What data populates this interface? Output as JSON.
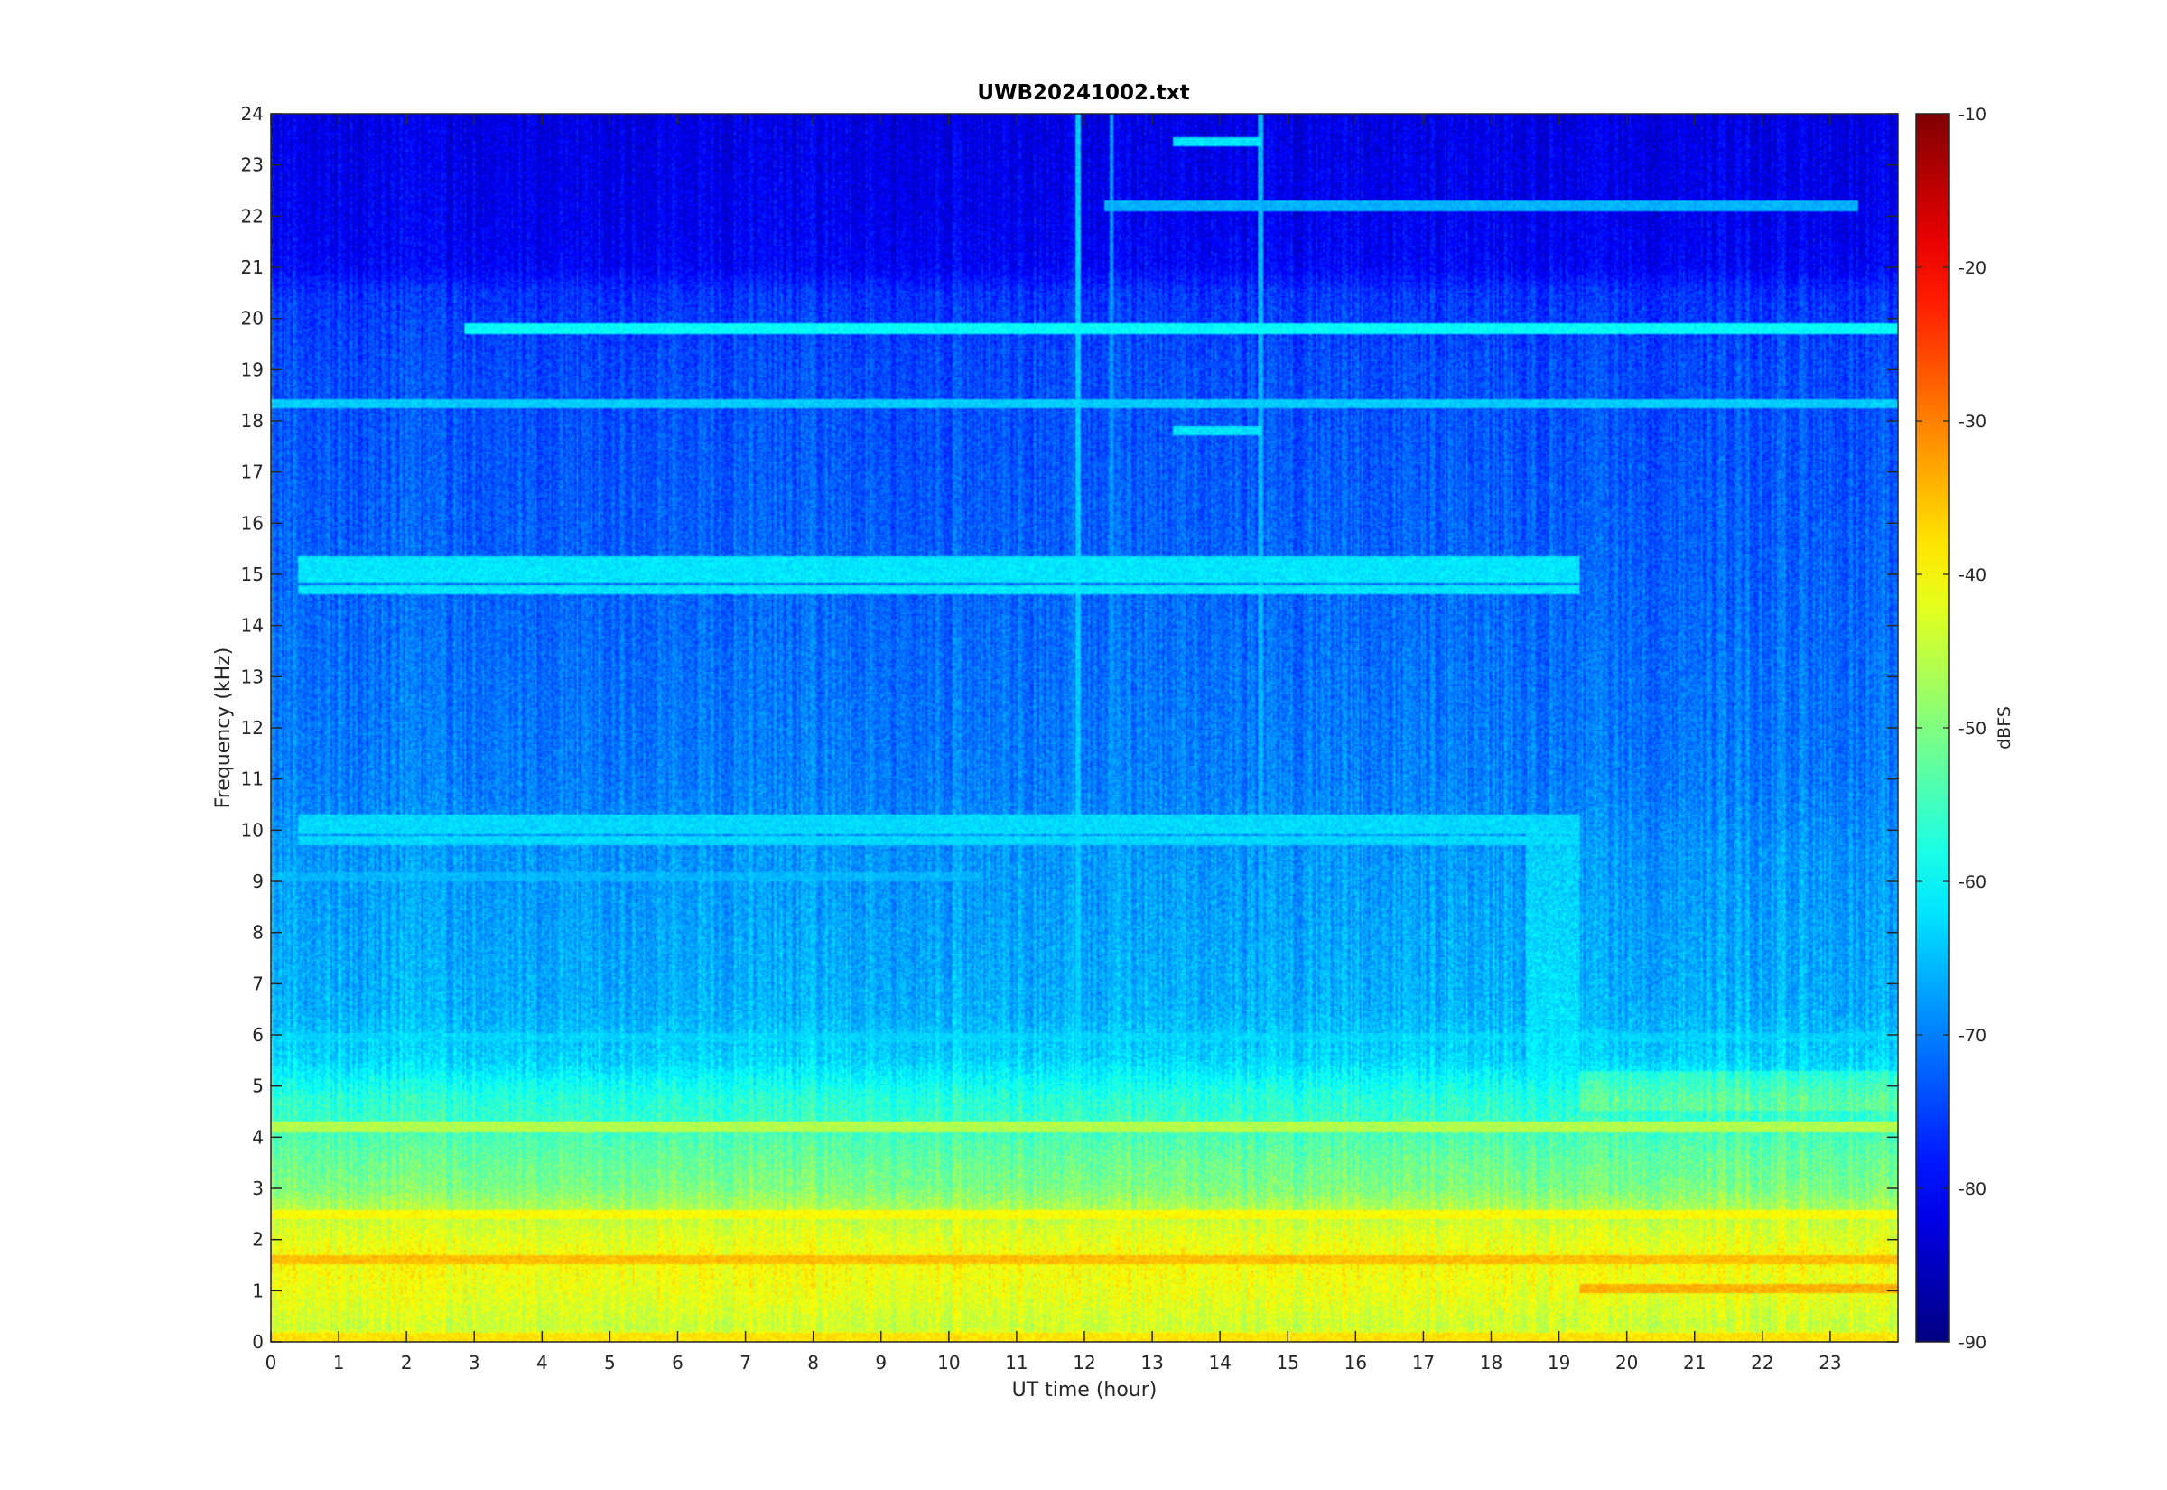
{
  "chart_data": {
    "type": "heatmap",
    "title": "UWB20241002.txt",
    "xlabel": "UT time (hour)",
    "ylabel": "Frequency (kHz)",
    "xlim": [
      0,
      24
    ],
    "ylim": [
      0,
      24
    ],
    "x_ticks": [
      0,
      1,
      2,
      3,
      4,
      5,
      6,
      7,
      8,
      9,
      10,
      11,
      12,
      13,
      14,
      15,
      16,
      17,
      18,
      19,
      20,
      21,
      22,
      23
    ],
    "y_ticks": [
      0,
      1,
      2,
      3,
      4,
      5,
      6,
      7,
      8,
      9,
      10,
      11,
      12,
      13,
      14,
      15,
      16,
      17,
      18,
      19,
      20,
      21,
      22,
      23,
      24
    ],
    "colormap": "jet",
    "colorbar": {
      "label": "dBFS",
      "range": [
        -90,
        -10
      ],
      "ticks": [
        -10,
        -20,
        -30,
        -40,
        -50,
        -60,
        -70,
        -80,
        -90
      ]
    },
    "background_profile_dbfs": [
      [
        0,
        -40
      ],
      [
        0.3,
        -44
      ],
      [
        0.8,
        -42
      ],
      [
        1.6,
        -40
      ],
      [
        2.2,
        -43
      ],
      [
        2.6,
        -46
      ],
      [
        3.0,
        -50
      ],
      [
        3.6,
        -52
      ],
      [
        4.2,
        -55
      ],
      [
        4.8,
        -57
      ],
      [
        5.5,
        -63
      ],
      [
        6.5,
        -66
      ],
      [
        8.0,
        -67
      ],
      [
        9.5,
        -68
      ],
      [
        11.0,
        -70
      ],
      [
        13.0,
        -71
      ],
      [
        15.0,
        -72
      ],
      [
        17.0,
        -73
      ],
      [
        19.0,
        -74
      ],
      [
        20.5,
        -76
      ],
      [
        21.0,
        -80
      ],
      [
        22.0,
        -81
      ],
      [
        24.0,
        -82
      ]
    ],
    "features": [
      {
        "kind": "tone",
        "freq_khz": 19.8,
        "t_start": 2.85,
        "t_end": 24,
        "level_dbfs": -60
      },
      {
        "kind": "tone",
        "freq_khz": 18.35,
        "t_start": 0,
        "t_end": 24,
        "level_dbfs": -64
      },
      {
        "kind": "tone",
        "freq_khz": 17.8,
        "t_start": 13.3,
        "t_end": 14.6,
        "level_dbfs": -62
      },
      {
        "kind": "tone",
        "freq_khz": 23.45,
        "t_start": 13.3,
        "t_end": 14.6,
        "level_dbfs": -62
      },
      {
        "kind": "tone",
        "freq_khz": 22.2,
        "t_start": 12.3,
        "t_end": 23.4,
        "level_dbfs": -66
      },
      {
        "kind": "tone_group",
        "freqs_khz": [
          15.25,
          15.1,
          14.9,
          14.7
        ],
        "t_start": 0.4,
        "t_end": 19.3,
        "level_dbfs": -62
      },
      {
        "kind": "tone_group",
        "freqs_khz": [
          10.2,
          10.0,
          9.8
        ],
        "t_start": 0.4,
        "t_end": 19.3,
        "level_dbfs": -63
      },
      {
        "kind": "tone",
        "freq_khz": 9.1,
        "t_start": 0,
        "t_end": 10.5,
        "level_dbfs": -66
      },
      {
        "kind": "tone",
        "freq_khz": 5.95,
        "t_start": 0,
        "t_end": 24,
        "level_dbfs": -64
      },
      {
        "kind": "tone",
        "freq_khz": 4.2,
        "t_start": 0,
        "t_end": 24,
        "level_dbfs": -46
      },
      {
        "kind": "tone",
        "freq_khz": 2.5,
        "t_start": 0,
        "t_end": 24,
        "level_dbfs": -40
      },
      {
        "kind": "tone",
        "freq_khz": 1.6,
        "t_start": 0,
        "t_end": 24,
        "level_dbfs": -35
      },
      {
        "kind": "tone",
        "freq_khz": 1.05,
        "t_start": 19.3,
        "t_end": 24,
        "level_dbfs": -34
      },
      {
        "kind": "tone",
        "freq_khz": 0.08,
        "t_start": 0,
        "t_end": 24,
        "level_dbfs": -38
      },
      {
        "kind": "broadband",
        "t_start": 18.5,
        "t_end": 19.3,
        "f_max_khz": 10.0,
        "level_dbfs": -60
      },
      {
        "kind": "impulse",
        "t": 11.9,
        "level_dbfs": -64
      },
      {
        "kind": "impulse",
        "t": 12.4,
        "level_dbfs": -68
      },
      {
        "kind": "impulse",
        "t": 14.6,
        "level_dbfs": -66
      }
    ]
  }
}
